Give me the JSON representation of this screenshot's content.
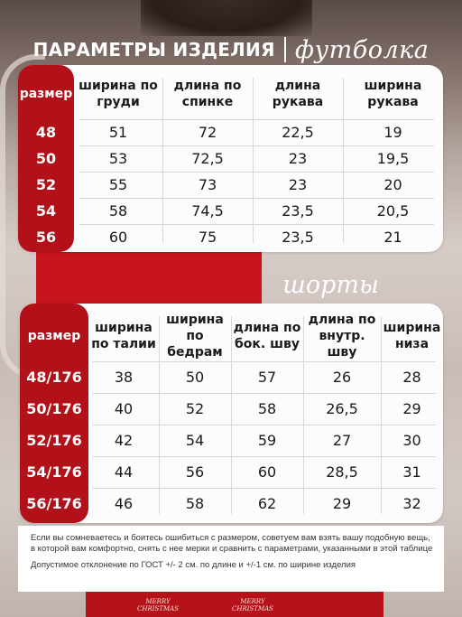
{
  "header": {
    "title": "ПАРАМЕТРЫ ИЗДЕЛИЯ",
    "product": "футболка"
  },
  "tshirt_table": {
    "headers": [
      "размер",
      "ширина по груди",
      "длина по спинке",
      "длина рукава",
      "ширина рукава"
    ],
    "rows": [
      [
        "48",
        "51",
        "72",
        "22,5",
        "19"
      ],
      [
        "50",
        "53",
        "72,5",
        "23",
        "19,5"
      ],
      [
        "52",
        "55",
        "73",
        "23",
        "20"
      ],
      [
        "54",
        "58",
        "74,5",
        "23,5",
        "20,5"
      ],
      [
        "56",
        "60",
        "75",
        "23,5",
        "21"
      ]
    ]
  },
  "shorts_section": {
    "title": "шорты"
  },
  "shorts_table": {
    "headers": [
      "размер",
      "ширина по талии",
      "ширина по бедрам",
      "длина по бок. шву",
      "длина по внутр. шву",
      "ширина низа"
    ],
    "rows": [
      [
        "48/176",
        "38",
        "50",
        "57",
        "26",
        "28"
      ],
      [
        "50/176",
        "40",
        "52",
        "58",
        "26,5",
        "29"
      ],
      [
        "52/176",
        "42",
        "54",
        "59",
        "27",
        "30"
      ],
      [
        "54/176",
        "44",
        "56",
        "60",
        "28,5",
        "31"
      ],
      [
        "56/176",
        "46",
        "58",
        "62",
        "29",
        "32"
      ]
    ]
  },
  "notes": {
    "advice": "Если вы сомневаетесь и боитесь ошибиться с размером, советуем вам взять вашу подобную вещь, в которой вам комфортно, снять с нее мерки и сравнить с параметрами, указанными в этой таблице",
    "tolerance": "Допустимое отклонение по ГОСТ +/- 2 см. по длине и +/-1 см. по ширине изделия"
  },
  "background": {
    "print_text_1": "MERRY CHRISTMAS",
    "print_text_2": "MERRY CHRISTMAS"
  },
  "colors": {
    "accent_red": "#b3111a",
    "card_bg": "#fcfcfc",
    "text_dark": "#1a1a1a"
  }
}
